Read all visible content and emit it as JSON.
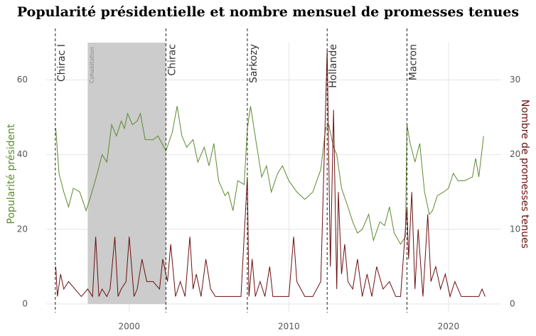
{
  "chart_data": {
    "type": "line",
    "title": "Popularité présidentielle et nombre mensuel de promesses tenues",
    "y_label": "Popularité président",
    "y2_label": "Nombre de promesses tenues",
    "xlim": [
      1994.8,
      2023.3
    ],
    "xticks": [
      2000,
      2010,
      2020
    ],
    "ylim": [
      -2.3,
      70
    ],
    "yticks": [
      0,
      20,
      40,
      60
    ],
    "y2lim": [
      -1.15,
      35
    ],
    "y2ticks": [
      0,
      10,
      20,
      30
    ],
    "grid": true,
    "events": [
      {
        "x": 1995.37,
        "label": "Chirac I"
      },
      {
        "x": 2002.3,
        "label": "Chirac"
      },
      {
        "x": 2007.4,
        "label": "Sarkozy"
      },
      {
        "x": 2012.4,
        "label": "Hollande"
      },
      {
        "x": 2017.4,
        "label": "Macron"
      }
    ],
    "shaded": {
      "x": [
        1997.4,
        2002.3
      ],
      "label": "Cohabitation",
      "color": "#cccccc"
    },
    "series": [
      {
        "name": "Popularité président",
        "color": "#5c8a2e",
        "axis": "y",
        "x": [
          1995.4,
          1995.6,
          1995.9,
          1996.2,
          1996.5,
          1996.9,
          1997.3,
          1997.6,
          1998.0,
          1998.3,
          1998.6,
          1998.9,
          1999.2,
          1999.5,
          1999.7,
          1999.9,
          2000.2,
          2000.5,
          2000.7,
          2001.0,
          2001.5,
          2001.8,
          2002.3,
          2002.7,
          2003.0,
          2003.3,
          2003.6,
          2004.0,
          2004.3,
          2004.7,
          2005.0,
          2005.3,
          2005.6,
          2006.0,
          2006.2,
          2006.5,
          2006.8,
          2007.2,
          2007.4,
          2007.6,
          2008.0,
          2008.3,
          2008.6,
          2008.9,
          2009.3,
          2009.6,
          2010.0,
          2010.5,
          2011.0,
          2011.5,
          2012.0,
          2012.3,
          2012.5,
          2012.8,
          2013.0,
          2013.3,
          2013.7,
          2014.0,
          2014.3,
          2014.6,
          2015.0,
          2015.3,
          2015.7,
          2016.0,
          2016.3,
          2016.6,
          2017.0,
          2017.3,
          2017.4,
          2017.6,
          2017.9,
          2018.2,
          2018.5,
          2018.8,
          2019.0,
          2019.3,
          2019.7,
          2020.0,
          2020.3,
          2020.6,
          2021.0,
          2021.5,
          2021.7,
          2021.9,
          2022.2
        ],
        "values": [
          47,
          35,
          30,
          26,
          31,
          30,
          25,
          29,
          35,
          40,
          38,
          48,
          45,
          49,
          47,
          51,
          48,
          49,
          51,
          44,
          44,
          45,
          41,
          46,
          53,
          45,
          42,
          44,
          38,
          42,
          37,
          43,
          33,
          29,
          30,
          25,
          33,
          32,
          47,
          53,
          42,
          34,
          37,
          30,
          35,
          37,
          33,
          30,
          28,
          30,
          36,
          47,
          48,
          42,
          40,
          31,
          26,
          22,
          19,
          20,
          24,
          17,
          22,
          21,
          26,
          19,
          16,
          18,
          48,
          43,
          38,
          43,
          30,
          24,
          25,
          29,
          30,
          31,
          35,
          33,
          33,
          34,
          39,
          34,
          45
        ]
      },
      {
        "name": "Nombre de promesses tenues",
        "color": "#6b0f0f",
        "axis": "y2",
        "x": [
          1995.4,
          1995.5,
          1995.7,
          1995.9,
          1996.2,
          1996.6,
          1997.0,
          1997.4,
          1997.7,
          1997.9,
          1998.1,
          1998.3,
          1998.6,
          1998.8,
          1999.1,
          1999.3,
          1999.5,
          1999.8,
          2000.0,
          2000.3,
          2000.5,
          2000.8,
          2001.1,
          2001.5,
          2001.9,
          2002.1,
          2002.4,
          2002.6,
          2002.9,
          2003.2,
          2003.5,
          2003.8,
          2004.0,
          2004.2,
          2004.5,
          2004.8,
          2005.1,
          2005.4,
          2005.7,
          2006.0,
          2006.5,
          2007.0,
          2007.4,
          2007.5,
          2007.7,
          2007.9,
          2008.2,
          2008.5,
          2008.8,
          2009.0,
          2009.5,
          2010.0,
          2010.3,
          2010.5,
          2011.0,
          2011.5,
          2012.0,
          2012.4,
          2012.6,
          2012.8,
          2013.0,
          2013.1,
          2013.3,
          2013.5,
          2013.7,
          2014.0,
          2014.3,
          2014.6,
          2014.9,
          2015.2,
          2015.5,
          2015.9,
          2016.3,
          2016.7,
          2017.0,
          2017.4,
          2017.5,
          2017.7,
          2017.9,
          2018.1,
          2018.4,
          2018.7,
          2018.9,
          2019.2,
          2019.5,
          2019.8,
          2020.1,
          2020.4,
          2020.8,
          2021.2,
          2021.6,
          2021.9,
          2022.1,
          2022.3
        ],
        "values": [
          5,
          1,
          4,
          2,
          3,
          2,
          1,
          2,
          1,
          9,
          1,
          2,
          1,
          2,
          9,
          1,
          2,
          3,
          9,
          1,
          2,
          6,
          3,
          3,
          2,
          6,
          3,
          8,
          1,
          3,
          1,
          9,
          2,
          4,
          1,
          6,
          2,
          1,
          1,
          1,
          1,
          1,
          17,
          1,
          6,
          1,
          3,
          1,
          5,
          1,
          1,
          1,
          9,
          3,
          1,
          1,
          3,
          34,
          5,
          26,
          2,
          15,
          4,
          8,
          3,
          2,
          6,
          1,
          4,
          1,
          5,
          2,
          3,
          1,
          1,
          13,
          6,
          15,
          2,
          10,
          1,
          12,
          3,
          5,
          2,
          4,
          1,
          3,
          1,
          1,
          1,
          1,
          2,
          1
        ]
      }
    ]
  }
}
